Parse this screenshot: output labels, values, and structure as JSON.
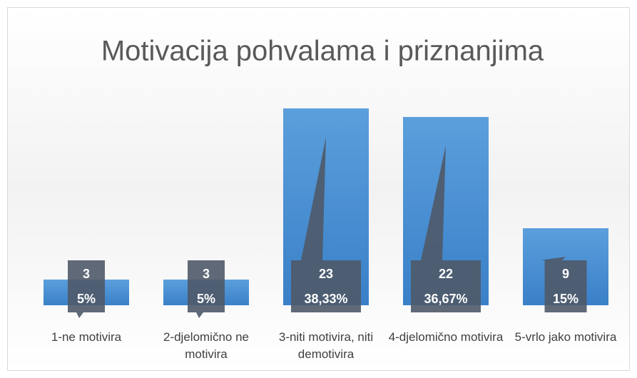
{
  "chart_data": {
    "type": "bar",
    "title": "Motivacija pohvalama i priznanjima",
    "categories": [
      "1-ne motivira",
      "2-djelomično ne motivira",
      "3-niti motivira, niti demotivira",
      "4-djelomično motivira",
      "5-vrlo jako motivira"
    ],
    "values": [
      3,
      3,
      23,
      22,
      9
    ],
    "percent_labels": [
      "5%",
      "5%",
      "38,33%",
      "36,67%",
      "15%"
    ],
    "color": "#4a8fd4",
    "ylim": [
      0,
      25
    ]
  }
}
